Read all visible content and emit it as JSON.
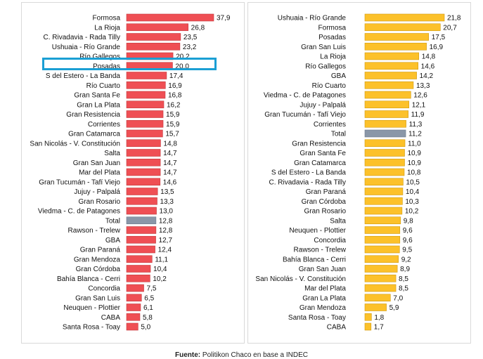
{
  "colors": {
    "left_bar": "#ef4f54",
    "left_bar_border": "#c23b3f",
    "right_bar": "#fcc12a",
    "right_bar_border": "#d09a10",
    "total_bar": "#8a97a8",
    "highlight": "#1b9fd4"
  },
  "source": {
    "label": "Fuente:",
    "text": "Politikon Chaco en base a INDEC"
  },
  "chart_data": [
    {
      "type": "bar",
      "orientation": "horizontal",
      "highlighted_category": "Posadas",
      "categories": [
        "Formosa",
        "La Rioja",
        "C. Rivadavia - Rada Tilly",
        "Ushuaia - Río Grande",
        "Río Gallegos",
        "Posadas",
        "S del Estero - La Banda",
        "Río Cuarto",
        "Gran Santa Fe",
        "Gran La Plata",
        "Gran Resistencia",
        "Corrientes",
        "Gran Catamarca",
        "San Nicolás - V. Constitución",
        "Salta",
        "Gran San Juan",
        "Mar del Plata",
        "Gran Tucumán - Tafí Viejo",
        "Jujuy - Palpalá",
        "Gran Rosario",
        "Viedma - C. de Patagones",
        "Total",
        "Rawson - Trelew",
        "GBA",
        "Gran Paraná",
        "Gran Mendoza",
        "Gran Córdoba",
        "Bahía Blanca - Cerri",
        "Concordia",
        "Gran San Luis",
        "Neuquen - Plottier",
        "CABA",
        "Santa Rosa - Toay"
      ],
      "value_labels": [
        "37,9",
        "26,8",
        "23,5",
        "23,2",
        "20,2",
        "20,0",
        "17,4",
        "16,9",
        "16,8",
        "16,2",
        "15,9",
        "15,9",
        "15,7",
        "14,8",
        "14,7",
        "14,7",
        "14,7",
        "14,6",
        "13,5",
        "13,3",
        "13,0",
        "12,8",
        "12,8",
        "12,7",
        "12,4",
        "11,1",
        "10,4",
        "10,2",
        "7,5",
        "6,5",
        "6,1",
        "5,8",
        "5,0"
      ],
      "values": [
        37.9,
        26.8,
        23.5,
        23.2,
        20.2,
        20.0,
        17.4,
        16.9,
        16.8,
        16.2,
        15.9,
        15.9,
        15.7,
        14.8,
        14.7,
        14.7,
        14.7,
        14.6,
        13.5,
        13.3,
        13.0,
        12.8,
        12.8,
        12.7,
        12.4,
        11.1,
        10.4,
        10.2,
        7.5,
        6.5,
        6.1,
        5.8,
        5.0
      ],
      "xlim": [
        0,
        37.9
      ]
    },
    {
      "type": "bar",
      "orientation": "horizontal",
      "categories": [
        "Ushuaia - Río Grande",
        "Formosa",
        "Posadas",
        "Gran San Luis",
        "La Rioja",
        "Río Gallegos",
        "GBA",
        "Río Cuarto",
        "Viedma - C. de Patagones",
        "Jujuy - Palpalá",
        "Gran Tucumán - Tafí Viejo",
        "Corrientes",
        "Total",
        "Gran Resistencia",
        "Gran Santa Fe",
        "Gran Catamarca",
        "S del Estero - La Banda",
        "C. Rivadavia - Rada Tilly",
        "Gran Paraná",
        "Gran Córdoba",
        "Gran Rosario",
        "Salta",
        "Neuquen - Plottier",
        "Concordia",
        "Rawson - Trelew",
        "Bahía Blanca - Cerri",
        "Gran San Juan",
        "San Nicolás - V. Constitución",
        "Mar del Plata",
        "Gran La Plata",
        "Gran Mendoza",
        "Santa Rosa - Toay",
        "CABA"
      ],
      "value_labels": [
        "21,8",
        "20,7",
        "17,5",
        "16,9",
        "14,8",
        "14,6",
        "14,2",
        "13,3",
        "12,6",
        "12,1",
        "11,9",
        "11,3",
        "11,2",
        "11,0",
        "10,9",
        "10,9",
        "10,8",
        "10,5",
        "10,4",
        "10,3",
        "10,2",
        "9,8",
        "9,6",
        "9,6",
        "9,5",
        "9,2",
        "8,9",
        "8,5",
        "8,5",
        "7,0",
        "5,9",
        "1,8",
        "1,7"
      ],
      "values": [
        21.8,
        20.7,
        17.5,
        16.9,
        14.8,
        14.6,
        14.2,
        13.3,
        12.6,
        12.1,
        11.9,
        11.3,
        11.2,
        11.0,
        10.9,
        10.9,
        10.8,
        10.5,
        10.4,
        10.3,
        10.2,
        9.8,
        9.6,
        9.6,
        9.5,
        9.2,
        8.9,
        8.5,
        8.5,
        7.0,
        5.9,
        1.8,
        1.7
      ],
      "xlim": [
        0,
        21.8
      ]
    }
  ]
}
